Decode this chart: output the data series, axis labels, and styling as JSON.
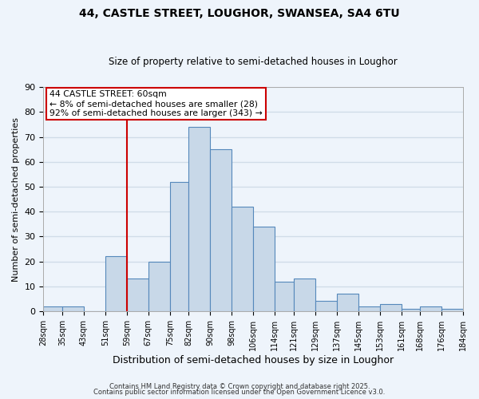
{
  "title1": "44, CASTLE STREET, LOUGHOR, SWANSEA, SA4 6TU",
  "title2": "Size of property relative to semi-detached houses in Loughor",
  "xlabel": "Distribution of semi-detached houses by size in Loughor",
  "ylabel": "Number of semi-detached properties",
  "bin_labels": [
    "28sqm",
    "35sqm",
    "43sqm",
    "51sqm",
    "59sqm",
    "67sqm",
    "75sqm",
    "82sqm",
    "90sqm",
    "98sqm",
    "106sqm",
    "114sqm",
    "121sqm",
    "129sqm",
    "137sqm",
    "145sqm",
    "153sqm",
    "161sqm",
    "168sqm",
    "176sqm",
    "184sqm"
  ],
  "bin_edges": [
    28,
    35,
    43,
    51,
    59,
    67,
    75,
    82,
    90,
    98,
    106,
    114,
    121,
    129,
    137,
    145,
    153,
    161,
    168,
    176,
    184
  ],
  "bar_heights": [
    2,
    2,
    0,
    22,
    13,
    20,
    52,
    74,
    65,
    42,
    34,
    12,
    13,
    4,
    7,
    2,
    3,
    1,
    2,
    1
  ],
  "bar_color": "#c8d8e8",
  "bar_edge_color": "#5588bb",
  "property_line_x": 59,
  "annotation_title": "44 CASTLE STREET: 60sqm",
  "annotation_line1": "← 8% of semi-detached houses are smaller (28)",
  "annotation_line2": "92% of semi-detached houses are larger (343) →",
  "vline_color": "#cc0000",
  "annotation_box_edge": "#cc0000",
  "ylim": [
    0,
    90
  ],
  "yticks": [
    0,
    10,
    20,
    30,
    40,
    50,
    60,
    70,
    80,
    90
  ],
  "bg_color": "#eef4fb",
  "grid_color": "#d0dce8",
  "footer1": "Contains HM Land Registry data © Crown copyright and database right 2025.",
  "footer2": "Contains public sector information licensed under the Open Government Licence v3.0."
}
